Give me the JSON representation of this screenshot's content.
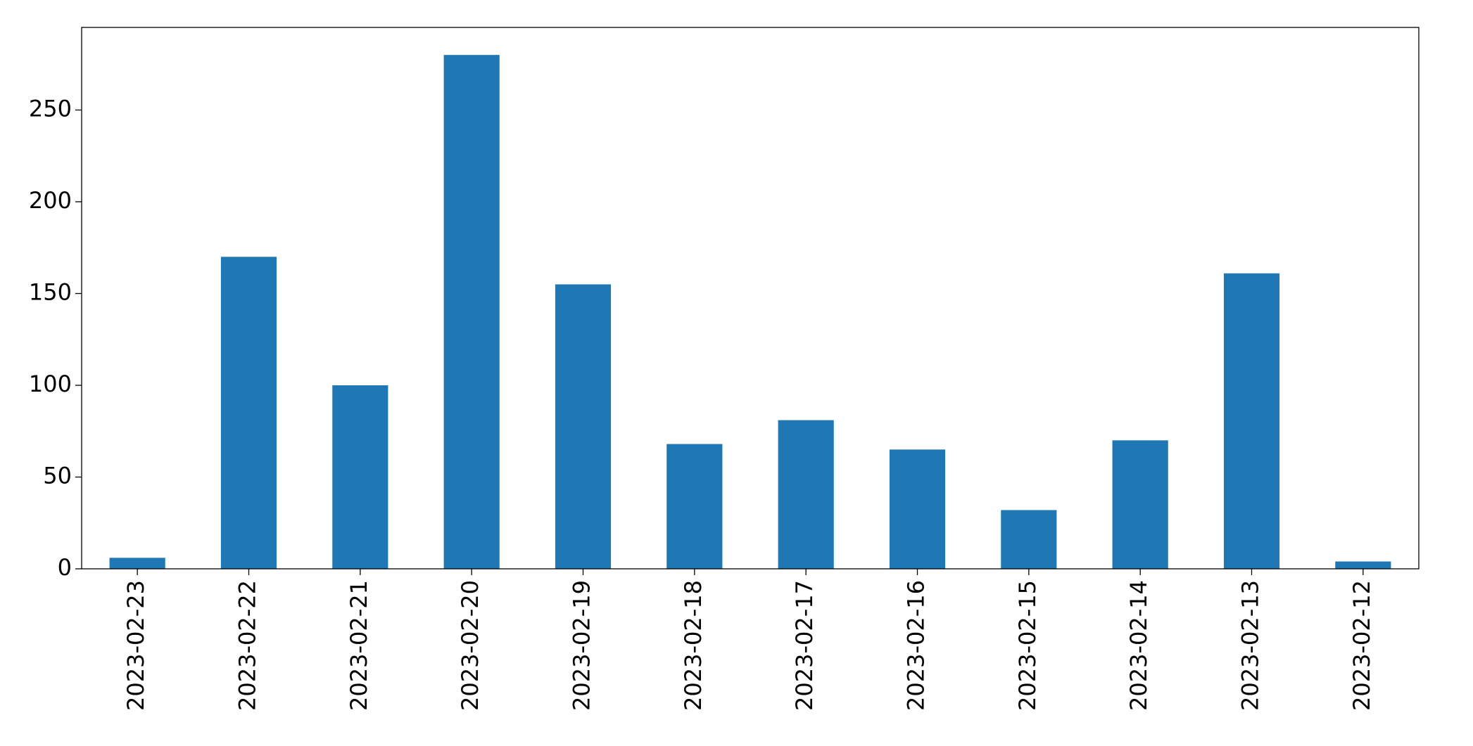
{
  "chart_data": {
    "type": "bar",
    "categories": [
      "2023-02-23",
      "2023-02-22",
      "2023-02-21",
      "2023-02-20",
      "2023-02-19",
      "2023-02-18",
      "2023-02-17",
      "2023-02-16",
      "2023-02-15",
      "2023-02-14",
      "2023-02-13",
      "2023-02-12"
    ],
    "values": [
      6,
      170,
      100,
      280,
      155,
      68,
      81,
      65,
      32,
      70,
      161,
      4
    ],
    "color": "#1f77b4",
    "ylim": [
      0,
      295
    ],
    "yticks": [
      0,
      50,
      100,
      150,
      200,
      250
    ],
    "grid": false
  }
}
